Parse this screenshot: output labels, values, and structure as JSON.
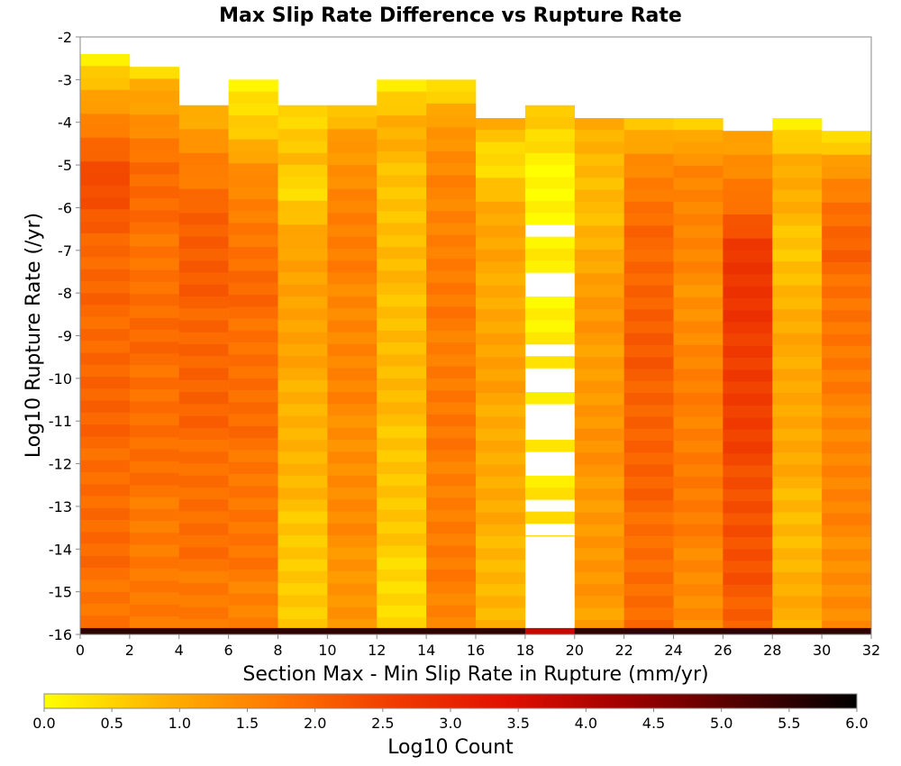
{
  "chart_data": {
    "type": "heatmap",
    "title": "Max Slip Rate Difference vs Rupture Rate",
    "xlabel": "Section Max - Min Slip Rate in Rupture (mm/yr)",
    "ylabel": "Log10 Rupture Rate (/yr)",
    "xlim": [
      0,
      32
    ],
    "ylim": [
      -16,
      -2
    ],
    "x_ticks": [
      "0",
      "2",
      "4",
      "6",
      "8",
      "10",
      "12",
      "14",
      "16",
      "18",
      "20",
      "22",
      "24",
      "26",
      "28",
      "30",
      "32"
    ],
    "y_ticks": [
      "-2",
      "-3",
      "-4",
      "-5",
      "-6",
      "-7",
      "-8",
      "-9",
      "-10",
      "-11",
      "-12",
      "-13",
      "-14",
      "-15",
      "-16"
    ],
    "x_bin_width": 2,
    "y_bin_height": 0.28,
    "colorbar": {
      "label": "Log10 Count",
      "range": [
        0,
        6
      ],
      "ticks": [
        "0.0",
        "0.5",
        "1.0",
        "1.5",
        "2.0",
        "2.5",
        "3.0",
        "3.5",
        "4.0",
        "4.5",
        "5.0",
        "5.5",
        "6.0"
      ],
      "colors": [
        "#ffff00",
        "#ffb400",
        "#ff7800",
        "#f03c00",
        "#e01000",
        "#a00000",
        "#500000",
        "#000000"
      ]
    },
    "columns": [
      {
        "x_range": [
          0,
          2
        ],
        "top": -2.4,
        "bottom": -15.9,
        "profile": [
          [
            -2.4,
            0.2
          ],
          [
            -3.5,
            1.2
          ],
          [
            -5.5,
            2.5
          ],
          [
            -7,
            1.9
          ],
          [
            -10,
            2.0
          ],
          [
            -15.9,
            1.8
          ]
        ]
      },
      {
        "x_range": [
          2,
          4
        ],
        "top": -2.7,
        "bottom": -15.9,
        "profile": [
          [
            -2.7,
            0.2
          ],
          [
            -3.3,
            1.1
          ],
          [
            -5,
            1.9
          ],
          [
            -7,
            1.8
          ],
          [
            -10,
            1.9
          ],
          [
            -15.9,
            1.6
          ]
        ]
      },
      {
        "x_range": [
          4,
          6
        ],
        "top": -3.6,
        "bottom": -15.9,
        "profile": [
          [
            -3.6,
            0.8
          ],
          [
            -4.5,
            1.3
          ],
          [
            -6,
            2.1
          ],
          [
            -10,
            2.0
          ],
          [
            -15.9,
            1.7
          ]
        ]
      },
      {
        "x_range": [
          6,
          8
        ],
        "top": -3.0,
        "bottom": -15.9,
        "profile": [
          [
            -3.0,
            0.2
          ],
          [
            -4.2,
            0.6
          ],
          [
            -5.5,
            1.6
          ],
          [
            -8,
            1.9
          ],
          [
            -12,
            1.8
          ],
          [
            -15.9,
            1.6
          ]
        ]
      },
      {
        "x_range": [
          8,
          10
        ],
        "top": -3.6,
        "bottom": -15.9,
        "profile": [
          [
            -3.6,
            0.5
          ],
          [
            -5,
            0.8
          ],
          [
            -5.5,
            0.3
          ],
          [
            -7,
            1.2
          ],
          [
            -10,
            1.0
          ],
          [
            -15.9,
            0.5
          ]
        ]
      },
      {
        "x_range": [
          10,
          12
        ],
        "top": -3.6,
        "bottom": -15.9,
        "profile": [
          [
            -3.6,
            0.4
          ],
          [
            -4.5,
            1.3
          ],
          [
            -6,
            1.6
          ],
          [
            -10,
            1.5
          ],
          [
            -15.9,
            1.3
          ]
        ]
      },
      {
        "x_range": [
          12,
          14
        ],
        "top": -3.0,
        "bottom": -15.9,
        "profile": [
          [
            -3.0,
            0.2
          ],
          [
            -4,
            0.9
          ],
          [
            -6,
            0.7
          ],
          [
            -9,
            0.8
          ],
          [
            -12,
            0.7
          ],
          [
            -15.9,
            0.4
          ]
        ]
      },
      {
        "x_range": [
          14,
          16
        ],
        "top": -3.0,
        "bottom": -15.9,
        "profile": [
          [
            -3.0,
            0.2
          ],
          [
            -3.9,
            1.2
          ],
          [
            -6,
            1.6
          ],
          [
            -10,
            1.7
          ],
          [
            -15.9,
            1.6
          ]
        ]
      },
      {
        "x_range": [
          16,
          18
        ],
        "top": -3.9,
        "bottom": -15.9,
        "profile": [
          [
            -3.9,
            0.9
          ],
          [
            -5,
            0.4
          ],
          [
            -6,
            1.0
          ],
          [
            -10,
            1.1
          ],
          [
            -15.9,
            0.8
          ]
        ]
      },
      {
        "x_range": [
          18,
          20
        ],
        "top": -3.6,
        "bottom": -13.7,
        "profile": [
          [
            -3.6,
            0.7
          ],
          [
            -5,
            0.1
          ],
          [
            -8,
            0.2
          ],
          [
            -13.7,
            0.3
          ]
        ],
        "gaps": [
          [
            -6.5,
            -6.8
          ],
          [
            -7.6,
            -8.1
          ],
          [
            -8.8,
            -9.0
          ],
          [
            -9.3,
            -9.5
          ],
          [
            -9.8,
            -10.4
          ],
          [
            -10.7,
            -11.3
          ],
          [
            -11.6,
            -12.4
          ],
          [
            -12.7,
            -13.0
          ],
          [
            -13.3,
            -13.6
          ]
        ]
      },
      {
        "x_range": [
          20,
          22
        ],
        "top": -3.9,
        "bottom": -15.9,
        "profile": [
          [
            -3.9,
            1.0
          ],
          [
            -5.5,
            0.7
          ],
          [
            -8,
            1.2
          ],
          [
            -12,
            1.3
          ],
          [
            -15.9,
            1.2
          ]
        ]
      },
      {
        "x_range": [
          22,
          24
        ],
        "top": -3.9,
        "bottom": -15.9,
        "profile": [
          [
            -3.9,
            0.7
          ],
          [
            -5,
            1.5
          ],
          [
            -7,
            2.0
          ],
          [
            -10,
            2.1
          ],
          [
            -15.9,
            1.8
          ]
        ]
      },
      {
        "x_range": [
          24,
          26
        ],
        "top": -3.9,
        "bottom": -15.9,
        "profile": [
          [
            -3.9,
            0.4
          ],
          [
            -5,
            1.6
          ],
          [
            -8,
            1.4
          ],
          [
            -12,
            1.7
          ],
          [
            -15.9,
            1.4
          ]
        ]
      },
      {
        "x_range": [
          26,
          28
        ],
        "top": -4.2,
        "bottom": -15.9,
        "profile": [
          [
            -4.2,
            1.0
          ],
          [
            -5.5,
            1.6
          ],
          [
            -7,
            2.7
          ],
          [
            -10,
            2.6
          ],
          [
            -13,
            2.3
          ],
          [
            -15.9,
            2.1
          ]
        ]
      },
      {
        "x_range": [
          28,
          30
        ],
        "top": -3.9,
        "bottom": -15.9,
        "profile": [
          [
            -3.9,
            0.2
          ],
          [
            -5,
            1.0
          ],
          [
            -7,
            0.7
          ],
          [
            -10,
            1.1
          ],
          [
            -14,
            0.8
          ],
          [
            -15.9,
            1.0
          ]
        ]
      },
      {
        "x_range": [
          30,
          32
        ],
        "top": -4.2,
        "bottom": -15.9,
        "profile": [
          [
            -4.2,
            0.2
          ],
          [
            -5,
            1.3
          ],
          [
            -6,
            1.8
          ],
          [
            -7,
            2.0
          ],
          [
            -10,
            1.6
          ],
          [
            -15.9,
            1.4
          ]
        ]
      }
    ],
    "bottom_row": {
      "y_range": [
        -16,
        -15.85
      ],
      "value": 5.5,
      "overrides": [
        {
          "x_range": [
            18,
            20
          ],
          "value": 3.8
        }
      ]
    }
  }
}
